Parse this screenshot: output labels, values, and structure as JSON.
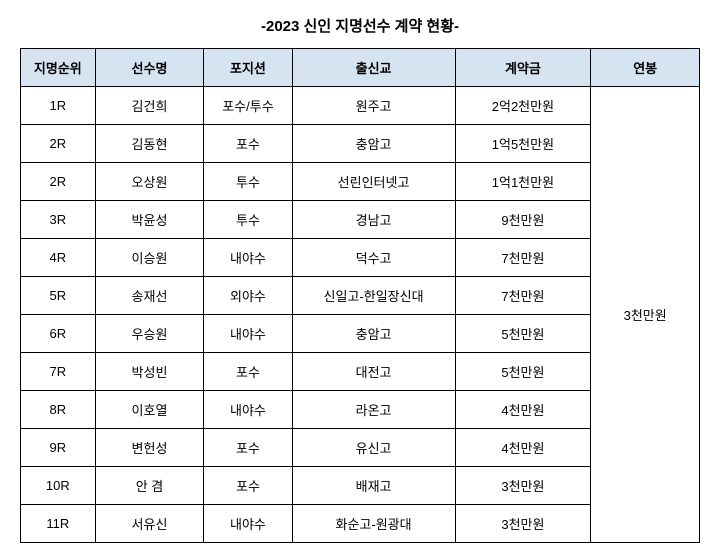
{
  "title": "-2023 신인 지명선수 계약 현황-",
  "headers": {
    "rank": "지명순위",
    "name": "선수명",
    "position": "포지션",
    "school": "출신교",
    "bonus": "계약금",
    "salary": "연봉"
  },
  "salary_merged": "3천만원",
  "rows": [
    {
      "rank": "1R",
      "name": "김건희",
      "position": "포수/투수",
      "school": "원주고",
      "bonus": "2억2천만원"
    },
    {
      "rank": "2R",
      "name": "김동현",
      "position": "포수",
      "school": "충암고",
      "bonus": "1억5천만원"
    },
    {
      "rank": "2R",
      "name": "오상원",
      "position": "투수",
      "school": "선린인터넷고",
      "bonus": "1억1천만원"
    },
    {
      "rank": "3R",
      "name": "박윤성",
      "position": "투수",
      "school": "경남고",
      "bonus": "9천만원"
    },
    {
      "rank": "4R",
      "name": "이승원",
      "position": "내야수",
      "school": "덕수고",
      "bonus": "7천만원"
    },
    {
      "rank": "5R",
      "name": "송재선",
      "position": "외야수",
      "school": "신일고-한일장신대",
      "bonus": "7천만원"
    },
    {
      "rank": "6R",
      "name": "우승원",
      "position": "내야수",
      "school": "충암고",
      "bonus": "5천만원"
    },
    {
      "rank": "7R",
      "name": "박성빈",
      "position": "포수",
      "school": "대전고",
      "bonus": "5천만원"
    },
    {
      "rank": "8R",
      "name": "이호열",
      "position": "내야수",
      "school": "라온고",
      "bonus": "4천만원"
    },
    {
      "rank": "9R",
      "name": "변헌성",
      "position": "포수",
      "school": "유신고",
      "bonus": "4천만원"
    },
    {
      "rank": "10R",
      "name": "안 겸",
      "position": "포수",
      "school": "배재고",
      "bonus": "3천만원"
    },
    {
      "rank": "11R",
      "name": "서유신",
      "position": "내야수",
      "school": "화순고-원광대",
      "bonus": "3천만원"
    }
  ],
  "styling": {
    "header_bg": "#d6e3f0",
    "border_color": "#000000",
    "font_size_title": 15,
    "font_size_cell": 13,
    "background": "#ffffff"
  }
}
